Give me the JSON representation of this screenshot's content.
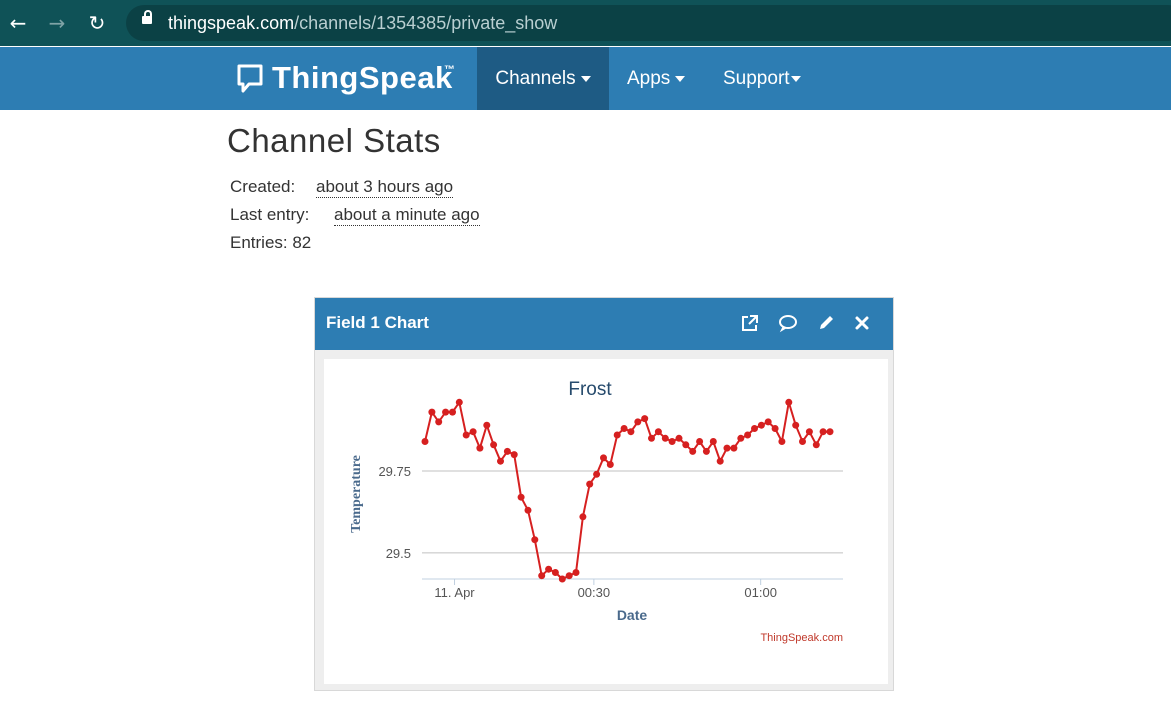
{
  "browser": {
    "url_domain": "thingspeak.com",
    "url_path": "/channels/1354385/private_show"
  },
  "navbar": {
    "brand": "ThingSpeak",
    "trademark": "™",
    "menu": [
      {
        "label": "Channels",
        "active": true
      },
      {
        "label": "Apps",
        "active": false
      },
      {
        "label": "Support",
        "active": false
      }
    ]
  },
  "stats": {
    "title": "Channel Stats",
    "created_label": "Created:",
    "created_value": "about 3 hours ago",
    "last_entry_label": "Last entry:",
    "last_entry_value": "about a minute ago",
    "entries_label": "Entries: 82"
  },
  "panel": {
    "title": "Field 1 Chart",
    "icons": [
      "external-link-icon",
      "comment-icon",
      "pencil-icon",
      "close-icon"
    ]
  },
  "colors": {
    "accent": "#2d7db3",
    "series": "#d62020",
    "credit": "#c0392b"
  },
  "chart_data": {
    "type": "line",
    "title": "Frost",
    "xlabel": "Date",
    "ylabel": "Temperature",
    "credit": "ThingSpeak.com",
    "ylim": [
      29.42,
      29.97
    ],
    "yticks": [
      29.5,
      29.75
    ],
    "xticks": [
      {
        "label": "11. Apr",
        "index": 4.3
      },
      {
        "label": "00:30",
        "index": 24.6
      },
      {
        "label": "01:00",
        "index": 48.9
      }
    ],
    "grid": true,
    "series": [
      {
        "values": [
          29.84,
          29.93,
          29.9,
          29.93,
          29.93,
          29.96,
          29.86,
          29.87,
          29.82,
          29.89,
          29.83,
          29.78,
          29.81,
          29.8,
          29.67,
          29.63,
          29.54,
          29.43,
          29.45,
          29.44,
          29.42,
          29.43,
          29.44,
          29.61,
          29.71,
          29.74,
          29.79,
          29.77,
          29.86,
          29.88,
          29.87,
          29.9,
          29.91,
          29.85,
          29.87,
          29.85,
          29.84,
          29.85,
          29.83,
          29.81,
          29.84,
          29.81,
          29.84,
          29.78,
          29.82,
          29.82,
          29.85,
          29.86,
          29.88,
          29.89,
          29.9,
          29.88,
          29.84,
          29.96,
          29.89,
          29.84,
          29.87,
          29.83,
          29.87,
          29.87
        ]
      }
    ]
  }
}
